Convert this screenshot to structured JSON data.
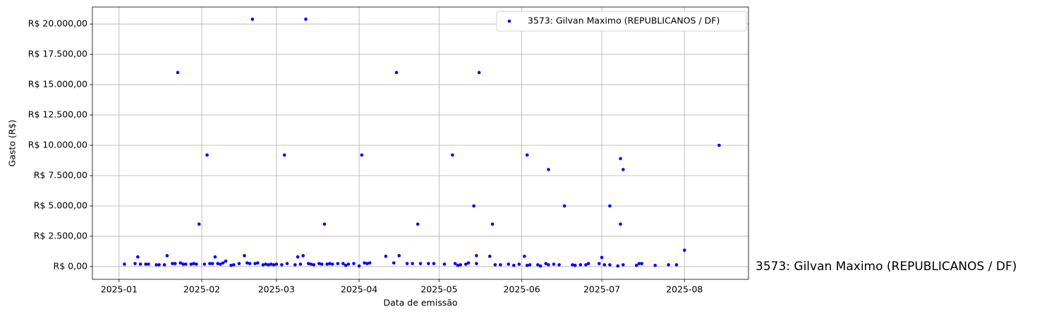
{
  "chart_data": {
    "type": "scatter",
    "xlabel": "Data de emissão",
    "ylabel": "Gasto (R$)",
    "annotation": {
      "text": "3573: Gilvan Maximo (REPUBLICANOS / DF)",
      "y": 0
    },
    "legend": "upper right",
    "grid": true,
    "xlim": [
      "2024-12-22",
      "2025-08-25"
    ],
    "xticks": [
      {
        "value": "2025-01-01",
        "label": "2025-01"
      },
      {
        "value": "2025-02-01",
        "label": "2025-02"
      },
      {
        "value": "2025-03-01",
        "label": "2025-03"
      },
      {
        "value": "2025-04-01",
        "label": "2025-04"
      },
      {
        "value": "2025-05-01",
        "label": "2025-05"
      },
      {
        "value": "2025-06-01",
        "label": "2025-06"
      },
      {
        "value": "2025-07-01",
        "label": "2025-07"
      },
      {
        "value": "2025-08-01",
        "label": "2025-08"
      }
    ],
    "ylim": [
      -1050,
      21400
    ],
    "yticks": [
      {
        "value": 0,
        "label": "R$ 0,00"
      },
      {
        "value": 2500,
        "label": "R$ 2.500,00"
      },
      {
        "value": 5000,
        "label": "R$ 5.000,00"
      },
      {
        "value": 7500,
        "label": "R$ 7.500,00"
      },
      {
        "value": 10000,
        "label": "R$ 10.000,00"
      },
      {
        "value": 12500,
        "label": "R$ 12.500,00"
      },
      {
        "value": 15000,
        "label": "R$ 15.000,00"
      },
      {
        "value": 17500,
        "label": "R$ 17.500,00"
      },
      {
        "value": 20000,
        "label": "R$ 20.000,00"
      }
    ],
    "series": [
      {
        "name": "3573: Gilvan Maximo (REPUBLICANOS / DF)",
        "color": "#0000ff",
        "x": [
          "2025-01-03",
          "2025-01-07",
          "2025-01-08",
          "2025-01-09",
          "2025-01-11",
          "2025-01-12",
          "2025-01-15",
          "2025-01-16",
          "2025-01-18",
          "2025-01-19",
          "2025-01-21",
          "2025-01-22",
          "2025-01-23",
          "2025-01-24",
          "2025-01-25",
          "2025-01-26",
          "2025-01-28",
          "2025-01-29",
          "2025-01-30",
          "2025-01-31",
          "2025-02-02",
          "2025-02-03",
          "2025-02-04",
          "2025-02-05",
          "2025-02-06",
          "2025-02-07",
          "2025-02-08",
          "2025-02-09",
          "2025-02-10",
          "2025-02-12",
          "2025-02-13",
          "2025-02-15",
          "2025-02-17",
          "2025-02-18",
          "2025-02-19",
          "2025-02-20",
          "2025-02-21",
          "2025-02-22",
          "2025-02-24",
          "2025-02-25",
          "2025-02-26",
          "2025-02-27",
          "2025-02-28",
          "2025-03-01",
          "2025-03-03",
          "2025-03-04",
          "2025-03-05",
          "2025-03-08",
          "2025-03-09",
          "2025-03-10",
          "2025-03-11",
          "2025-03-12",
          "2025-03-13",
          "2025-03-14",
          "2025-03-15",
          "2025-03-17",
          "2025-03-18",
          "2025-03-19",
          "2025-03-20",
          "2025-03-21",
          "2025-03-22",
          "2025-03-24",
          "2025-03-26",
          "2025-03-27",
          "2025-03-28",
          "2025-03-30",
          "2025-04-01",
          "2025-04-02",
          "2025-04-03",
          "2025-04-04",
          "2025-04-05",
          "2025-04-11",
          "2025-04-14",
          "2025-04-15",
          "2025-04-16",
          "2025-04-19",
          "2025-04-21",
          "2025-04-23",
          "2025-04-24",
          "2025-04-27",
          "2025-04-29",
          "2025-05-03",
          "2025-05-06",
          "2025-05-07",
          "2025-05-08",
          "2025-05-09",
          "2025-05-11",
          "2025-05-12",
          "2025-05-14",
          "2025-05-15",
          "2025-05-15",
          "2025-05-16",
          "2025-05-20",
          "2025-05-21",
          "2025-05-22",
          "2025-05-24",
          "2025-05-27",
          "2025-05-29",
          "2025-05-31",
          "2025-06-02",
          "2025-06-03",
          "2025-06-03",
          "2025-06-04",
          "2025-06-07",
          "2025-06-08",
          "2025-06-10",
          "2025-06-11",
          "2025-06-11",
          "2025-06-13",
          "2025-06-15",
          "2025-06-17",
          "2025-06-20",
          "2025-06-21",
          "2025-06-23",
          "2025-06-25",
          "2025-06-26",
          "2025-06-30",
          "2025-07-01",
          "2025-07-02",
          "2025-07-04",
          "2025-07-04",
          "2025-07-07",
          "2025-07-08",
          "2025-07-08",
          "2025-07-09",
          "2025-07-09",
          "2025-07-14",
          "2025-07-15",
          "2025-07-16",
          "2025-07-21",
          "2025-07-26",
          "2025-07-29",
          "2025-08-01",
          "2025-08-14"
        ],
        "values": [
          200,
          250,
          800,
          200,
          200,
          200,
          150,
          150,
          150,
          900,
          250,
          250,
          16000,
          300,
          200,
          200,
          200,
          250,
          200,
          3500,
          200,
          9200,
          250,
          250,
          800,
          250,
          200,
          300,
          450,
          100,
          150,
          250,
          900,
          300,
          250,
          20400,
          250,
          300,
          150,
          200,
          150,
          200,
          150,
          200,
          150,
          9200,
          250,
          150,
          800,
          200,
          900,
          20400,
          250,
          200,
          150,
          250,
          200,
          3500,
          200,
          250,
          200,
          250,
          250,
          100,
          200,
          250,
          50,
          9200,
          300,
          250,
          300,
          850,
          300,
          16000,
          900,
          250,
          250,
          3500,
          250,
          250,
          250,
          200,
          9200,
          250,
          100,
          150,
          200,
          300,
          5000,
          900,
          250,
          16000,
          850,
          3500,
          150,
          150,
          200,
          100,
          200,
          850,
          100,
          9200,
          150,
          150,
          50,
          250,
          8000,
          150,
          200,
          150,
          5000,
          150,
          100,
          150,
          150,
          250,
          250,
          750,
          150,
          150,
          5000,
          50,
          3500,
          8900,
          150,
          8000,
          100,
          250,
          250,
          100,
          150,
          150,
          1350,
          10000
        ]
      }
    ]
  }
}
